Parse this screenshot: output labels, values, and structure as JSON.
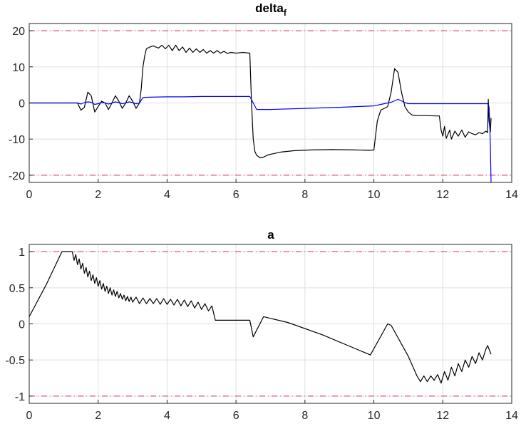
{
  "chart_data": [
    {
      "type": "line",
      "title": "delta",
      "title_subscript": "f",
      "xlim": [
        0,
        14
      ],
      "ylim": [
        -22,
        22
      ],
      "xticks": [
        0,
        2,
        4,
        6,
        8,
        10,
        12,
        14
      ],
      "yticks": [
        -20,
        -10,
        0,
        10,
        20
      ],
      "xtick_labels": [
        "0",
        "2",
        "4",
        "6",
        "8",
        "10",
        "12",
        "14"
      ],
      "ytick_labels": [
        "-20",
        "-10",
        "0",
        "10",
        "20"
      ],
      "grid": true,
      "reference_lines": [
        {
          "y": 20,
          "color": "#d9334a",
          "style": "dashed"
        },
        {
          "y": -20,
          "color": "#d9334a",
          "style": "dashed"
        }
      ],
      "series": [
        {
          "color": "#000000",
          "x": [
            0,
            1.4,
            1.5,
            1.6,
            1.7,
            1.8,
            1.9,
            2.0,
            2.1,
            2.2,
            2.3,
            2.4,
            2.5,
            2.6,
            2.7,
            2.8,
            2.9,
            3.0,
            3.1,
            3.2,
            3.25,
            3.3,
            3.35,
            3.4,
            3.5,
            3.6,
            3.75,
            3.85,
            3.95,
            4.05,
            4.15,
            4.25,
            4.35,
            4.45,
            4.55,
            4.65,
            4.75,
            4.85,
            4.95,
            5.05,
            5.15,
            5.25,
            5.35,
            5.45,
            5.55,
            5.65,
            5.75,
            5.85,
            6.0,
            6.2,
            6.4,
            6.45,
            6.5,
            6.55,
            6.6,
            6.7,
            6.8,
            6.9,
            7.0,
            7.3,
            7.7,
            8.2,
            8.8,
            9.4,
            9.9,
            10.0,
            10.1,
            10.2,
            10.3,
            10.4,
            10.5,
            10.6,
            10.7,
            10.8,
            10.9,
            11.0,
            11.1,
            11.2,
            11.5,
            11.8,
            11.9,
            11.95,
            12.0,
            12.05,
            12.1,
            12.2,
            12.25,
            12.35,
            12.45,
            12.55,
            12.65,
            12.75,
            12.85,
            12.95,
            13.05,
            13.15,
            13.25,
            13.3,
            13.32,
            13.34,
            13.38,
            13.4
          ],
          "y": [
            0,
            0,
            -2,
            -1.2,
            3,
            2,
            -2.5,
            -1,
            0.5,
            0,
            -1.8,
            0,
            2,
            0.5,
            -1.5,
            0,
            2,
            0.5,
            -1.5,
            0,
            4,
            10,
            13,
            15,
            15.5,
            15.8,
            15.2,
            16,
            15,
            16,
            14.5,
            16,
            14.5,
            15.5,
            14,
            15.2,
            14,
            15,
            14,
            14.8,
            13.8,
            14.5,
            13.8,
            14.5,
            13.8,
            14.3,
            13.7,
            14,
            13.8,
            14,
            13.8,
            0,
            -10,
            -13.5,
            -14.5,
            -15.2,
            -15,
            -14.5,
            -14.2,
            -13.6,
            -13.2,
            -13,
            -12.9,
            -13,
            -13.1,
            -13,
            -5,
            -2,
            -1.5,
            -1,
            3,
            9.5,
            8.5,
            3,
            -1,
            -2.5,
            -3.3,
            -3.5,
            -3.5,
            -3.6,
            -3.6,
            -7.5,
            -9.2,
            -6.5,
            -9.8,
            -7.5,
            -10,
            -7.8,
            -9.2,
            -7.5,
            -9.5,
            -8,
            -8.5,
            -8.8,
            -8.2,
            -8.5,
            -7.8,
            -8.2,
            1,
            -5,
            -8,
            -4.2
          ]
        },
        {
          "color": "#0000ff",
          "x": [
            0,
            1.4,
            1.5,
            1.6,
            1.7,
            1.8,
            1.9,
            2.0,
            2.1,
            2.2,
            2.3,
            2.4,
            2.5,
            2.6,
            2.7,
            2.8,
            2.9,
            3.0,
            3.1,
            3.2,
            3.25,
            3.3,
            3.5,
            4.0,
            4.5,
            5.0,
            5.5,
            6.0,
            6.4,
            6.5,
            6.6,
            7.0,
            8.0,
            9.0,
            10.0,
            10.3,
            10.5,
            10.7,
            10.8,
            10.9,
            11.0,
            11.5,
            12.0,
            12.5,
            13.0,
            13.3,
            13.34,
            13.36,
            13.38,
            13.4
          ],
          "y": [
            0,
            0,
            -0.3,
            0.1,
            0.3,
            0.2,
            -0.4,
            -0.2,
            0.1,
            0,
            -0.3,
            0,
            0.3,
            0.1,
            -0.2,
            0,
            0.3,
            0.1,
            -0.2,
            0,
            0.8,
            1.5,
            1.6,
            1.7,
            1.7,
            1.8,
            1.8,
            1.8,
            1.8,
            0,
            -1.8,
            -1.8,
            -1.5,
            -1.2,
            -0.8,
            -0.2,
            0.2,
            1,
            0.6,
            0.1,
            -0.2,
            -0.2,
            -0.2,
            -0.2,
            -0.2,
            -0.2,
            -1,
            -5,
            -12,
            -22
          ]
        }
      ]
    },
    {
      "type": "line",
      "title": "a",
      "xlim": [
        0,
        14
      ],
      "ylim": [
        -1.1,
        1.1
      ],
      "xticks": [
        0,
        2,
        4,
        6,
        8,
        10,
        12,
        14
      ],
      "yticks": [
        -1,
        -0.5,
        0,
        0.5,
        1
      ],
      "xtick_labels": [
        "0",
        "2",
        "4",
        "6",
        "8",
        "10",
        "12",
        "14"
      ],
      "ytick_labels": [
        "-1",
        "-0.5",
        "0",
        "0.5",
        "1"
      ],
      "grid": true,
      "reference_lines": [
        {
          "y": 1,
          "color": "#d9334a",
          "style": "dashed"
        },
        {
          "y": -1,
          "color": "#d9334a",
          "style": "dashed"
        }
      ],
      "series": [
        {
          "color": "#000000",
          "x": [
            0,
            0.5,
            0.95,
            1.25,
            1.3,
            1.35,
            1.4,
            1.45,
            1.5,
            1.55,
            1.6,
            1.65,
            1.7,
            1.75,
            1.8,
            1.85,
            1.9,
            1.95,
            2.0,
            2.05,
            2.1,
            2.15,
            2.2,
            2.25,
            2.3,
            2.35,
            2.4,
            2.45,
            2.5,
            2.55,
            2.6,
            2.65,
            2.7,
            2.75,
            2.8,
            2.85,
            2.9,
            2.95,
            3.0,
            3.1,
            3.2,
            3.3,
            3.4,
            3.5,
            3.6,
            3.7,
            3.8,
            3.9,
            4.0,
            4.1,
            4.2,
            4.3,
            4.4,
            4.5,
            4.6,
            4.7,
            4.8,
            4.9,
            5.0,
            5.1,
            5.2,
            5.3,
            5.4,
            5.5,
            6.0,
            6.4,
            6.5,
            6.8,
            7.5,
            8.5,
            9.5,
            9.9,
            10.4,
            10.5,
            11.0,
            11.25,
            11.35,
            11.45,
            11.55,
            11.65,
            11.75,
            11.85,
            11.95,
            12.05,
            12.15,
            12.25,
            12.35,
            12.45,
            12.55,
            12.65,
            12.75,
            12.85,
            12.95,
            13.05,
            13.15,
            13.25,
            13.3,
            13.4
          ],
          "y": [
            0.1,
            0.55,
            1.0,
            1.0,
            0.88,
            0.96,
            0.82,
            0.9,
            0.76,
            0.84,
            0.7,
            0.78,
            0.65,
            0.73,
            0.6,
            0.68,
            0.56,
            0.64,
            0.52,
            0.6,
            0.48,
            0.56,
            0.45,
            0.52,
            0.42,
            0.5,
            0.4,
            0.47,
            0.38,
            0.45,
            0.36,
            0.42,
            0.34,
            0.4,
            0.32,
            0.38,
            0.31,
            0.37,
            0.3,
            0.37,
            0.28,
            0.36,
            0.28,
            0.35,
            0.28,
            0.35,
            0.27,
            0.35,
            0.27,
            0.34,
            0.26,
            0.34,
            0.25,
            0.33,
            0.24,
            0.32,
            0.22,
            0.3,
            0.2,
            0.28,
            0.18,
            0.25,
            0.05,
            0.05,
            0.05,
            0.05,
            -0.18,
            0.1,
            0.02,
            -0.15,
            -0.35,
            -0.43,
            0.0,
            -0.02,
            -0.45,
            -0.72,
            -0.8,
            -0.72,
            -0.8,
            -0.72,
            -0.78,
            -0.7,
            -0.82,
            -0.66,
            -0.78,
            -0.6,
            -0.72,
            -0.55,
            -0.66,
            -0.5,
            -0.6,
            -0.45,
            -0.55,
            -0.4,
            -0.5,
            -0.35,
            -0.3,
            -0.42
          ]
        }
      ]
    }
  ]
}
